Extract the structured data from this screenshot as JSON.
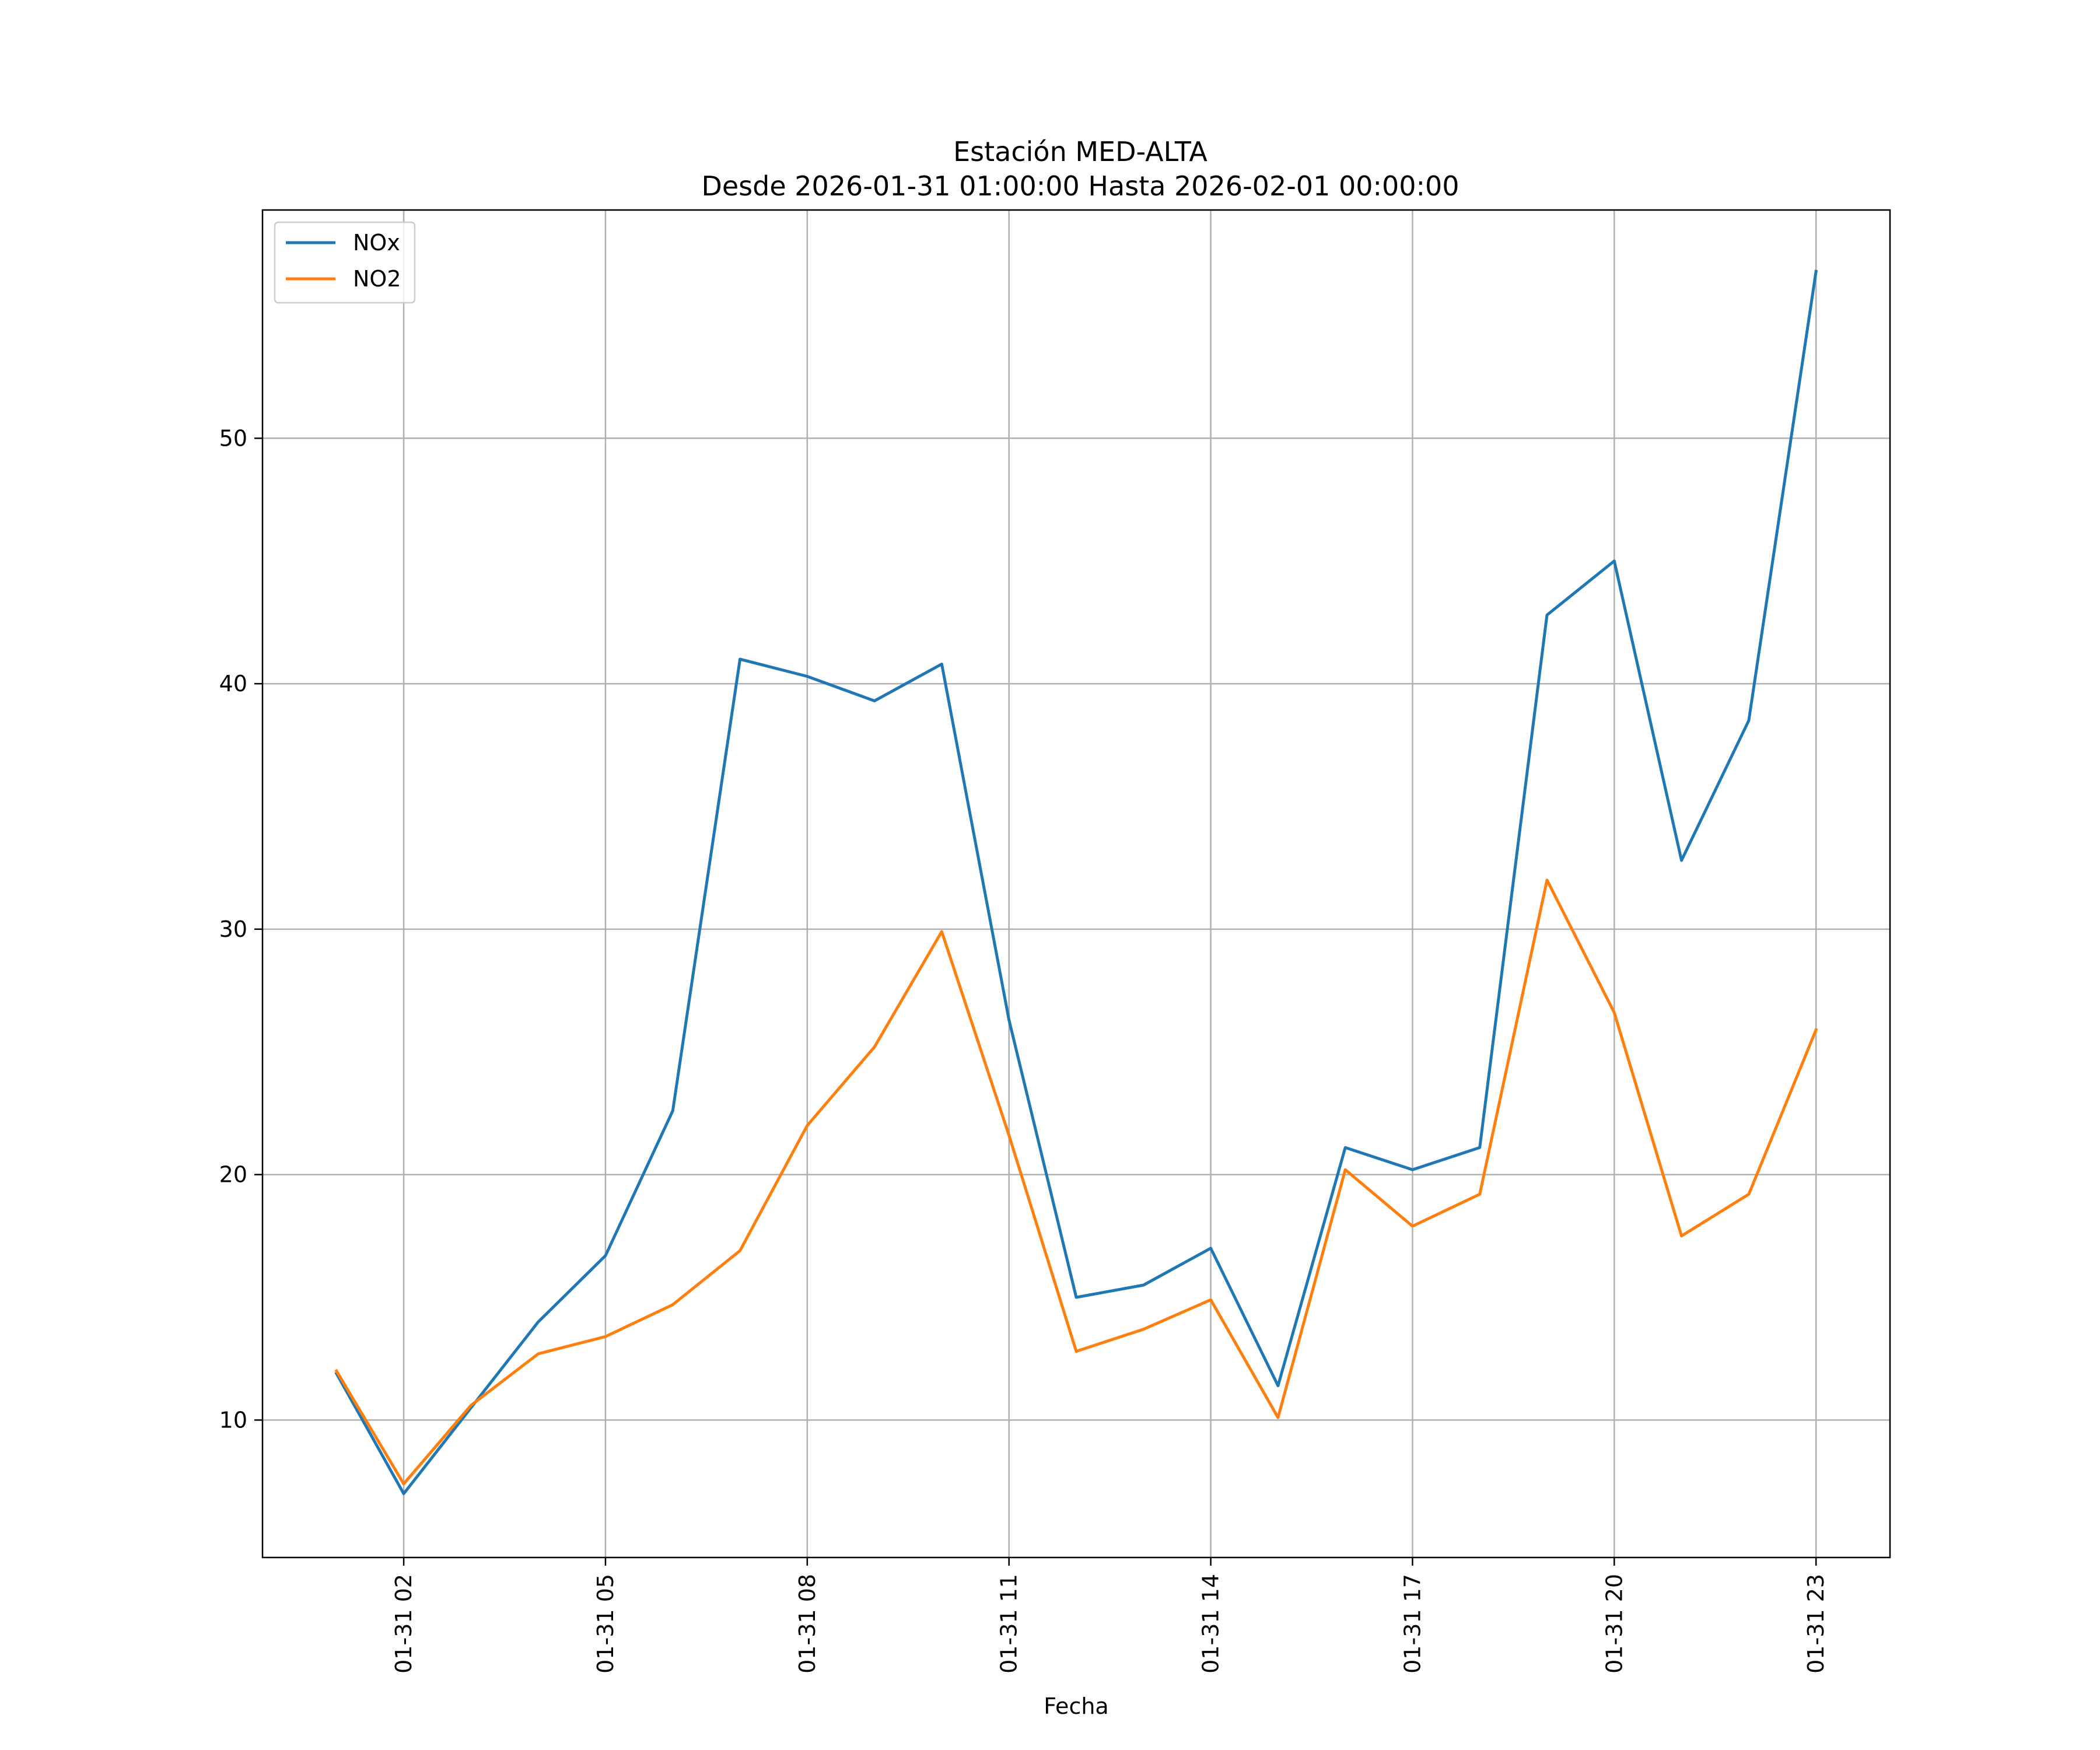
{
  "chart_data": {
    "type": "line",
    "title": "Estación MED-ALTA",
    "subtitle": "Desde 2026-01-31 01:00:00 Hasta 2026-02-01 00:00:00",
    "xlabel": "Fecha",
    "ylabel": "",
    "x": [
      "01-31 01",
      "01-31 02",
      "01-31 03",
      "01-31 04",
      "01-31 05",
      "01-31 06",
      "01-31 07",
      "01-31 08",
      "01-31 09",
      "01-31 10",
      "01-31 11",
      "01-31 12",
      "01-31 13",
      "01-31 14",
      "01-31 15",
      "01-31 16",
      "01-31 17",
      "01-31 18",
      "01-31 19",
      "01-31 20",
      "01-31 21",
      "01-31 22",
      "01-31 23"
    ],
    "xticks": [
      "01-31 02",
      "01-31 05",
      "01-31 08",
      "01-31 11",
      "01-31 14",
      "01-31 17",
      "01-31 20",
      "01-31 23"
    ],
    "yticks": [
      10,
      20,
      30,
      40,
      50
    ],
    "ylim": [
      4.4,
      59.3
    ],
    "grid": true,
    "legend_position": "upper-left",
    "series": [
      {
        "name": "NOx",
        "color": "#1f77b4",
        "values": [
          11.9,
          7.0,
          10.5,
          14.0,
          16.7,
          22.6,
          41.0,
          40.3,
          39.3,
          40.8,
          26.3,
          15.0,
          15.5,
          17.0,
          11.4,
          21.1,
          20.2,
          21.1,
          42.8,
          45.0,
          32.8,
          38.5,
          56.8
        ]
      },
      {
        "name": "NO2",
        "color": "#ff7f0e",
        "values": [
          12.0,
          7.4,
          10.6,
          12.7,
          13.4,
          14.7,
          16.9,
          22.0,
          25.2,
          29.9,
          21.6,
          12.8,
          13.7,
          14.9,
          10.1,
          20.2,
          17.9,
          19.2,
          32.0,
          26.6,
          17.5,
          19.2,
          25.9
        ]
      }
    ]
  }
}
